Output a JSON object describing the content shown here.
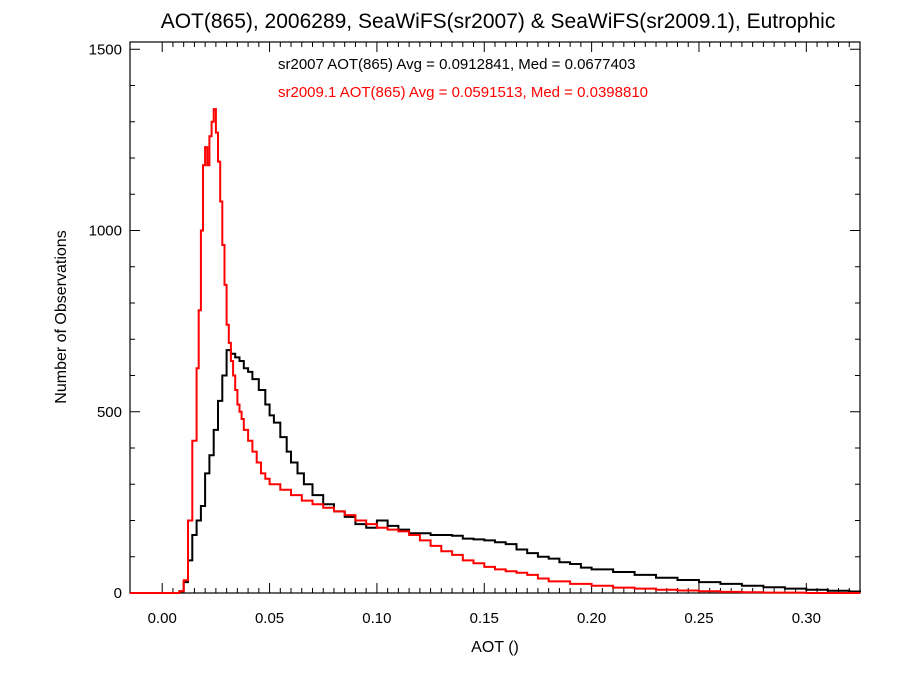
{
  "chart_data": {
    "type": "line",
    "step": true,
    "title": "AOT(865), 2006289, SeaWiFS(sr2007) & SeaWiFS(sr2009.1), Eutrophic",
    "xlabel": "AOT ()",
    "ylabel": "Number of Observations",
    "xlim": [
      -0.015,
      0.325
    ],
    "ylim": [
      0,
      1520
    ],
    "x_ticks": [
      "0.00",
      "0.05",
      "0.10",
      "0.15",
      "0.20",
      "0.25",
      "0.30"
    ],
    "y_ticks": [
      "0",
      "500",
      "1000",
      "1500"
    ],
    "grid": false,
    "annotations": [
      {
        "text": "sr2007 AOT(865) Avg = 0.0912841, Med = 0.0677403",
        "color": "#000000"
      },
      {
        "text": "sr2009.1 AOT(865) Avg = 0.0591513, Med = 0.0398810",
        "color": "#ff0000"
      }
    ],
    "series": [
      {
        "color": "#000000",
        "x": [
          -0.015,
          0.0,
          0.005,
          0.008,
          0.01,
          0.012,
          0.014,
          0.016,
          0.018,
          0.02,
          0.022,
          0.024,
          0.026,
          0.028,
          0.03,
          0.032,
          0.034,
          0.036,
          0.038,
          0.04,
          0.042,
          0.045,
          0.048,
          0.05,
          0.052,
          0.055,
          0.058,
          0.06,
          0.063,
          0.066,
          0.07,
          0.075,
          0.08,
          0.085,
          0.09,
          0.095,
          0.1,
          0.105,
          0.11,
          0.115,
          0.12,
          0.125,
          0.13,
          0.135,
          0.14,
          0.145,
          0.15,
          0.155,
          0.16,
          0.165,
          0.17,
          0.175,
          0.18,
          0.185,
          0.19,
          0.195,
          0.2,
          0.21,
          0.22,
          0.23,
          0.24,
          0.25,
          0.26,
          0.27,
          0.28,
          0.29,
          0.3,
          0.31,
          0.32,
          0.325
        ],
        "y": [
          0,
          0,
          0,
          5,
          30,
          90,
          160,
          200,
          240,
          330,
          380,
          450,
          530,
          600,
          670,
          660,
          650,
          640,
          620,
          610,
          590,
          560,
          520,
          490,
          470,
          430,
          390,
          360,
          330,
          300,
          270,
          245,
          225,
          210,
          190,
          180,
          200,
          185,
          175,
          165,
          165,
          160,
          160,
          158,
          150,
          148,
          145,
          140,
          135,
          120,
          110,
          100,
          95,
          85,
          80,
          70,
          65,
          58,
          50,
          42,
          36,
          30,
          25,
          20,
          16,
          12,
          9,
          6,
          4,
          2
        ]
      },
      {
        "color": "#ff0000",
        "x": [
          -0.015,
          0.0,
          0.005,
          0.008,
          0.01,
          0.012,
          0.014,
          0.016,
          0.017,
          0.018,
          0.019,
          0.02,
          0.021,
          0.022,
          0.023,
          0.024,
          0.025,
          0.026,
          0.027,
          0.028,
          0.029,
          0.03,
          0.031,
          0.032,
          0.033,
          0.034,
          0.035,
          0.036,
          0.037,
          0.038,
          0.04,
          0.042,
          0.044,
          0.046,
          0.048,
          0.05,
          0.055,
          0.06,
          0.065,
          0.07,
          0.075,
          0.08,
          0.085,
          0.09,
          0.095,
          0.1,
          0.105,
          0.11,
          0.115,
          0.12,
          0.125,
          0.13,
          0.135,
          0.14,
          0.145,
          0.15,
          0.155,
          0.16,
          0.165,
          0.17,
          0.175,
          0.18,
          0.19,
          0.2,
          0.21,
          0.22,
          0.23,
          0.24,
          0.25,
          0.26,
          0.27,
          0.28,
          0.3,
          0.325
        ],
        "y": [
          0,
          0,
          0,
          5,
          35,
          200,
          420,
          620,
          780,
          1000,
          1180,
          1230,
          1180,
          1260,
          1300,
          1335,
          1270,
          1190,
          1080,
          960,
          850,
          740,
          690,
          640,
          600,
          560,
          520,
          500,
          480,
          450,
          420,
          390,
          360,
          330,
          315,
          300,
          285,
          270,
          255,
          245,
          235,
          225,
          215,
          200,
          190,
          180,
          175,
          170,
          160,
          145,
          130,
          115,
          105,
          90,
          82,
          72,
          65,
          60,
          56,
          50,
          40,
          32,
          25,
          20,
          15,
          12,
          9,
          7,
          5,
          3,
          2,
          1,
          0,
          0
        ]
      }
    ]
  }
}
